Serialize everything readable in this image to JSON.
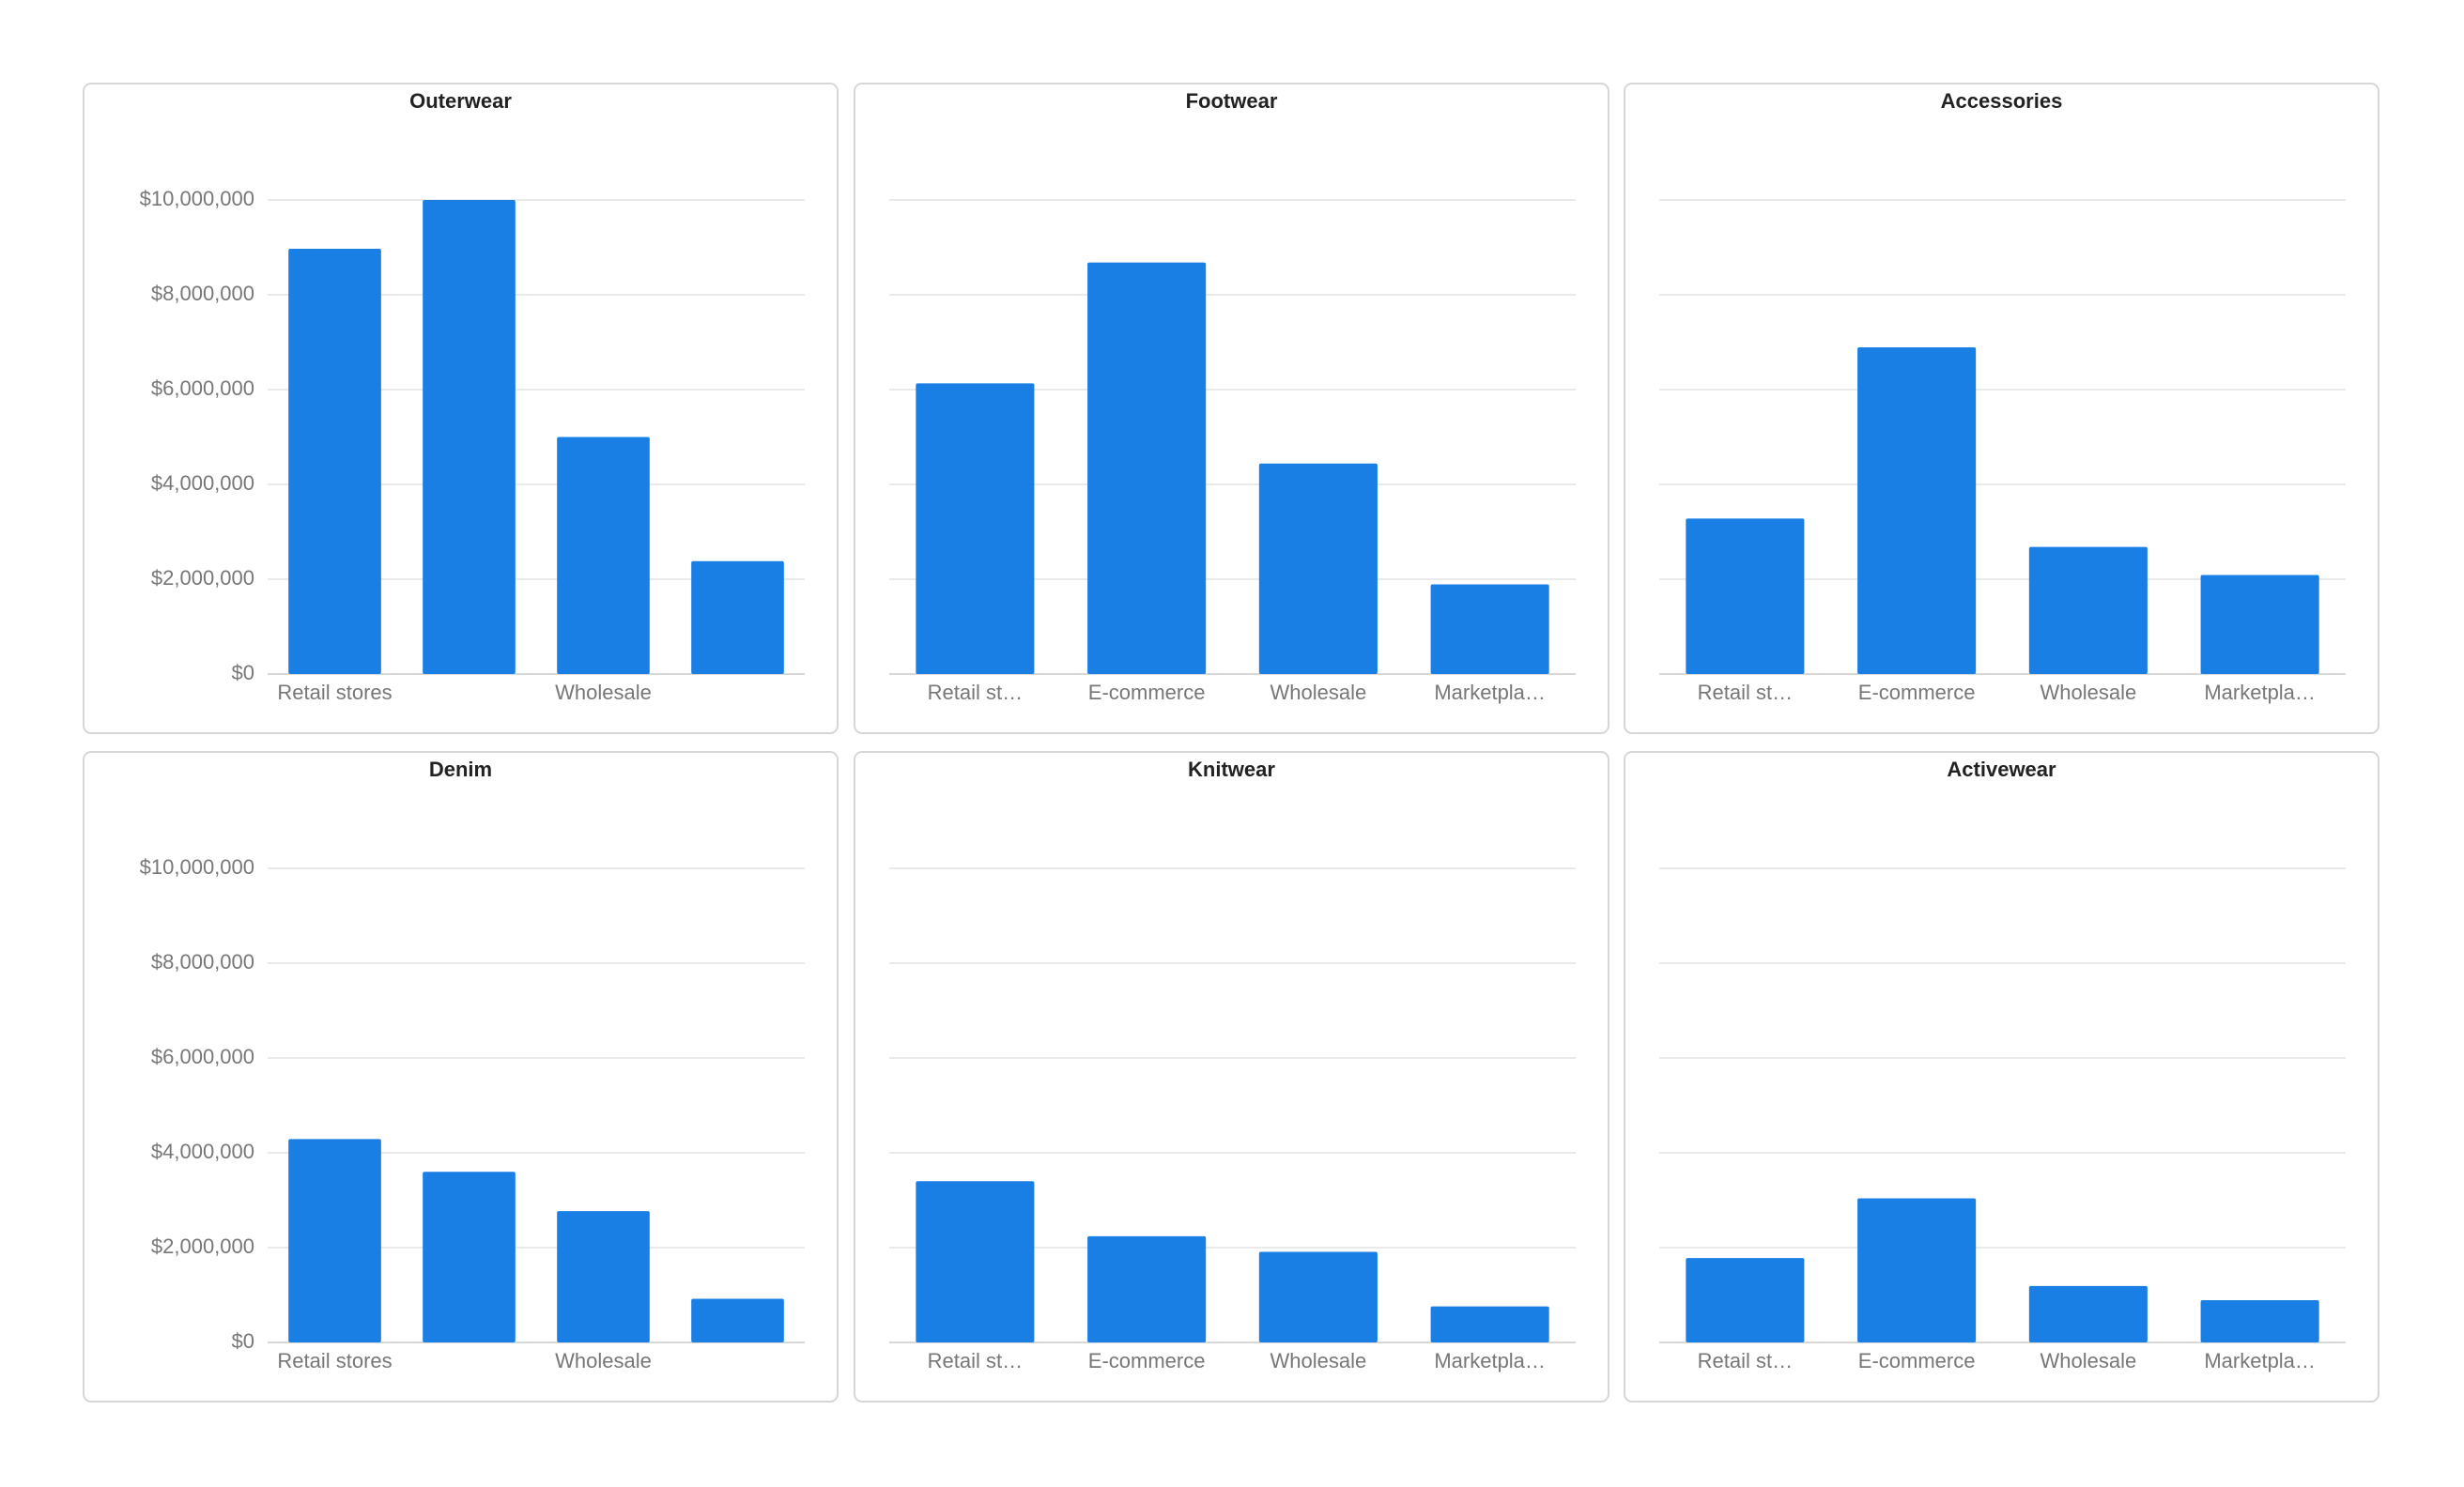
{
  "chart_data": [
    {
      "type": "bar",
      "title": "Outerwear",
      "categories": [
        "Retail stores",
        null,
        "Wholesale",
        null
      ],
      "values": [
        8970000,
        10000000,
        5000000,
        2380000
      ],
      "color": "#1a7fe5",
      "ylim": [
        0,
        10000000
      ],
      "yticks": [
        {
          "value": 0,
          "label": "$0"
        },
        {
          "value": 2000000,
          "label": "$2,000,000"
        },
        {
          "value": 4000000,
          "label": "$4,000,000"
        },
        {
          "value": 6000000,
          "label": "$6,000,000"
        },
        {
          "value": 8000000,
          "label": "$8,000,000"
        },
        {
          "value": 10000000,
          "label": "$10,000,000"
        }
      ],
      "grid": true
    },
    {
      "type": "bar",
      "title": "Footwear",
      "categories": [
        "Retail st…",
        "E-commerce",
        "Wholesale",
        "Marketpla…"
      ],
      "values": [
        6130000,
        8680000,
        4440000,
        1890000
      ],
      "color": "#1a7fe5",
      "ylim": [
        0,
        10000000
      ],
      "yticks": [
        0,
        2000000,
        4000000,
        6000000,
        8000000,
        10000000
      ],
      "grid": true
    },
    {
      "type": "bar",
      "title": "Accessories",
      "categories": [
        "Retail st…",
        "E-commerce",
        "Wholesale",
        "Marketpla…"
      ],
      "values": [
        3280000,
        6890000,
        2680000,
        2090000
      ],
      "color": "#1a7fe5",
      "ylim": [
        0,
        10000000
      ],
      "yticks": [
        0,
        2000000,
        4000000,
        6000000,
        8000000,
        10000000
      ],
      "grid": true
    },
    {
      "type": "bar",
      "title": "Denim",
      "categories": [
        "Retail stores",
        null,
        "Wholesale",
        null
      ],
      "values": [
        4290000,
        3600000,
        2770000,
        920000
      ],
      "color": "#1a7fe5",
      "ylim": [
        0,
        10000000
      ],
      "yticks": [
        {
          "value": 0,
          "label": "$0"
        },
        {
          "value": 2000000,
          "label": "$2,000,000"
        },
        {
          "value": 4000000,
          "label": "$4,000,000"
        },
        {
          "value": 6000000,
          "label": "$6,000,000"
        },
        {
          "value": 8000000,
          "label": "$8,000,000"
        },
        {
          "value": 10000000,
          "label": "$10,000,000"
        }
      ],
      "grid": true
    },
    {
      "type": "bar",
      "title": "Knitwear",
      "categories": [
        "Retail st…",
        "E-commerce",
        "Wholesale",
        "Marketpla…"
      ],
      "values": [
        3400000,
        2240000,
        1910000,
        760000
      ],
      "color": "#1a7fe5",
      "ylim": [
        0,
        10000000
      ],
      "yticks": [
        0,
        2000000,
        4000000,
        6000000,
        8000000,
        10000000
      ],
      "grid": true
    },
    {
      "type": "bar",
      "title": "Activewear",
      "categories": [
        "Retail st…",
        "E-commerce",
        "Wholesale",
        "Marketpla…"
      ],
      "values": [
        1780000,
        3040000,
        1190000,
        890000
      ],
      "color": "#1a7fe5",
      "ylim": [
        0,
        10000000
      ],
      "yticks": [
        0,
        2000000,
        4000000,
        6000000,
        8000000,
        10000000
      ],
      "grid": true
    }
  ]
}
